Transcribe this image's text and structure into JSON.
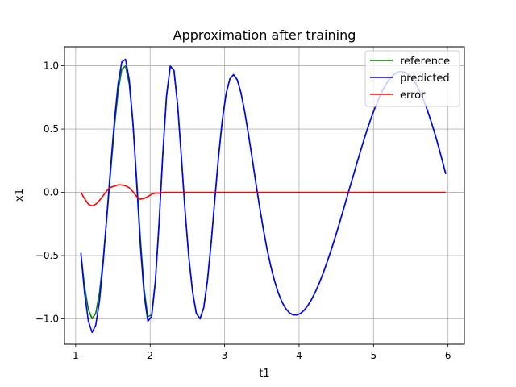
{
  "chart_data": {
    "type": "line",
    "title": "Approximation after training",
    "xlabel": "t1",
    "ylabel": "x1",
    "xlim": [
      0.85,
      6.22
    ],
    "ylim": [
      -1.2,
      1.15
    ],
    "xticks": [
      1,
      2,
      3,
      4,
      5,
      6
    ],
    "xtick_labels": [
      "1",
      "2",
      "3",
      "4",
      "5",
      "6"
    ],
    "yticks": [
      -1.0,
      -0.5,
      0.0,
      0.5,
      1.0
    ],
    "ytick_labels": [
      "−1.0",
      "−0.5",
      "0.0",
      "0.5",
      "1.0"
    ],
    "grid": true,
    "legend_position": "top-right",
    "series": [
      {
        "name": "reference",
        "color": "#008000",
        "x": [
          1.07,
          1.12,
          1.17,
          1.22,
          1.27,
          1.32,
          1.37,
          1.42,
          1.47,
          1.52,
          1.57,
          1.62,
          1.67,
          1.72,
          1.77,
          1.82,
          1.87,
          1.92,
          1.97,
          2.02,
          2.07,
          2.12,
          2.17,
          2.22,
          2.27,
          2.32,
          2.37,
          2.42,
          2.47,
          2.52,
          2.57,
          2.62,
          2.67,
          2.72,
          2.77,
          2.82,
          2.87,
          2.92,
          2.97,
          3.02,
          3.07,
          3.12,
          3.17,
          3.22,
          3.27,
          3.32,
          3.37,
          3.42,
          3.47,
          3.52,
          3.57,
          3.62,
          3.67,
          3.72,
          3.77,
          3.82,
          3.87,
          3.92,
          3.97,
          4.02,
          4.07,
          4.12,
          4.17,
          4.22,
          4.27,
          4.32,
          4.37,
          4.42,
          4.47,
          4.52,
          4.57,
          4.62,
          4.67,
          4.72,
          4.77,
          4.82,
          4.87,
          4.92,
          4.97,
          5.02,
          5.07,
          5.12,
          5.17,
          5.22,
          5.27,
          5.32,
          5.37,
          5.42,
          5.47,
          5.52,
          5.57,
          5.62,
          5.67,
          5.72,
          5.77,
          5.82,
          5.87,
          5.92,
          5.97
        ],
        "values": [
          -0.479,
          -0.746,
          -0.924,
          -0.998,
          -0.955,
          -0.794,
          -0.528,
          -0.194,
          0.169,
          0.513,
          0.797,
          0.972,
          0.998,
          0.851,
          0.535,
          0.096,
          -0.373,
          -0.764,
          -0.983,
          -0.967,
          -0.702,
          -0.24,
          0.298,
          0.757,
          0.997,
          0.962,
          0.686,
          0.276,
          -0.151,
          -0.513,
          -0.787,
          -0.955,
          -0.999,
          -0.911,
          -0.697,
          -0.392,
          -0.045,
          0.29,
          0.573,
          0.778,
          0.896,
          0.93,
          0.889,
          0.786,
          0.638,
          0.46,
          0.268,
          0.073,
          -0.115,
          -0.29,
          -0.447,
          -0.584,
          -0.699,
          -0.793,
          -0.865,
          -0.917,
          -0.951,
          -0.968,
          -0.969,
          -0.956,
          -0.93,
          -0.892,
          -0.843,
          -0.785,
          -0.718,
          -0.644,
          -0.562,
          -0.475,
          -0.383,
          -0.287,
          -0.188,
          -0.087,
          0.015,
          0.117,
          0.218,
          0.317,
          0.413,
          0.504,
          0.59,
          0.669,
          0.741,
          0.803,
          0.856,
          0.898,
          0.929,
          0.948,
          0.955,
          0.949,
          0.93,
          0.899,
          0.855,
          0.799,
          0.732,
          0.654,
          0.566,
          0.47,
          0.367,
          0.258,
          0.145
        ]
      },
      {
        "name": "predicted",
        "color": "#0000ff",
        "x": [
          1.07,
          1.12,
          1.17,
          1.22,
          1.27,
          1.32,
          1.37,
          1.42,
          1.47,
          1.52,
          1.57,
          1.62,
          1.67,
          1.72,
          1.77,
          1.82,
          1.87,
          1.92,
          1.97,
          2.02,
          2.07,
          2.12,
          2.17,
          2.22,
          2.27,
          2.32,
          2.37,
          2.42,
          2.47,
          2.52,
          2.57,
          2.62,
          2.67,
          2.72,
          2.77,
          2.82,
          2.87,
          2.92,
          2.97,
          3.02,
          3.07,
          3.12,
          3.17,
          3.22,
          3.27,
          3.32,
          3.37,
          3.42,
          3.47,
          3.52,
          3.57,
          3.62,
          3.67,
          3.72,
          3.77,
          3.82,
          3.87,
          3.92,
          3.97,
          4.02,
          4.07,
          4.12,
          4.17,
          4.22,
          4.27,
          4.32,
          4.37,
          4.42,
          4.47,
          4.52,
          4.57,
          4.62,
          4.67,
          4.72,
          4.77,
          4.82,
          4.87,
          4.92,
          4.97,
          5.02,
          5.07,
          5.12,
          5.17,
          5.22,
          5.27,
          5.32,
          5.37,
          5.42,
          5.47,
          5.52,
          5.57,
          5.62,
          5.67,
          5.72,
          5.77,
          5.82,
          5.87,
          5.92,
          5.97
        ],
        "values": [
          -0.479,
          -0.795,
          -1.017,
          -1.106,
          -1.049,
          -0.858,
          -0.554,
          -0.18,
          0.209,
          0.562,
          0.857,
          1.03,
          1.051,
          0.886,
          0.54,
          0.062,
          -0.427,
          -0.812,
          -1.017,
          -0.982,
          -0.708,
          -0.247,
          0.297,
          0.757,
          0.997,
          0.962,
          0.686,
          0.276,
          -0.151,
          -0.513,
          -0.787,
          -0.955,
          -0.999,
          -0.911,
          -0.697,
          -0.392,
          -0.045,
          0.29,
          0.573,
          0.778,
          0.896,
          0.93,
          0.889,
          0.786,
          0.638,
          0.46,
          0.268,
          0.073,
          -0.115,
          -0.29,
          -0.447,
          -0.584,
          -0.699,
          -0.793,
          -0.865,
          -0.917,
          -0.951,
          -0.968,
          -0.969,
          -0.956,
          -0.93,
          -0.892,
          -0.843,
          -0.785,
          -0.718,
          -0.644,
          -0.562,
          -0.475,
          -0.383,
          -0.287,
          -0.188,
          -0.087,
          0.015,
          0.117,
          0.218,
          0.317,
          0.413,
          0.504,
          0.59,
          0.669,
          0.741,
          0.803,
          0.856,
          0.898,
          0.929,
          0.948,
          0.955,
          0.949,
          0.93,
          0.899,
          0.855,
          0.799,
          0.732,
          0.654,
          0.566,
          0.47,
          0.367,
          0.258,
          0.145
        ]
      },
      {
        "name": "error",
        "color": "#ff0000",
        "x": [
          1.07,
          1.12,
          1.17,
          1.22,
          1.27,
          1.32,
          1.37,
          1.42,
          1.47,
          1.52,
          1.57,
          1.62,
          1.67,
          1.72,
          1.77,
          1.82,
          1.87,
          1.92,
          1.97,
          2.02,
          2.07,
          2.12,
          2.17,
          2.22,
          2.27,
          2.32,
          2.37,
          2.42,
          2.47,
          2.52,
          2.57,
          2.62,
          2.67,
          2.72,
          2.77,
          2.82,
          2.87,
          2.92,
          2.97,
          3.02,
          3.07,
          3.12,
          3.17,
          3.22,
          3.27,
          3.32,
          3.37,
          3.42,
          3.47,
          3.52,
          3.57,
          3.62,
          3.67,
          3.72,
          3.77,
          3.82,
          3.87,
          3.92,
          3.97,
          4.02,
          4.07,
          4.12,
          4.17,
          4.22,
          4.27,
          4.32,
          4.37,
          4.42,
          4.47,
          4.52,
          4.57,
          4.62,
          4.67,
          4.72,
          4.77,
          4.82,
          4.87,
          4.92,
          4.97,
          5.02,
          5.07,
          5.12,
          5.17,
          5.22,
          5.27,
          5.32,
          5.37,
          5.42,
          5.47,
          5.52,
          5.57,
          5.62,
          5.67,
          5.72,
          5.77,
          5.82,
          5.87,
          5.92,
          5.97
        ],
        "values": [
          0.0,
          -0.049,
          -0.093,
          -0.108,
          -0.094,
          -0.064,
          -0.026,
          0.014,
          0.04,
          0.049,
          0.06,
          0.058,
          0.053,
          0.035,
          0.005,
          -0.034,
          -0.054,
          -0.048,
          -0.034,
          -0.015,
          -0.006,
          -0.007,
          -0.001,
          0.0,
          0.0,
          0.0,
          0.0,
          0.0,
          0.0,
          0.0,
          0.0,
          0.0,
          0.0,
          0.0,
          0.0,
          0.0,
          0.0,
          0.0,
          0.0,
          0.0,
          0.0,
          0.0,
          0.0,
          0.0,
          0.0,
          0.0,
          0.0,
          0.0,
          0.0,
          0.0,
          0.0,
          0.0,
          0.0,
          0.0,
          0.0,
          0.0,
          0.0,
          0.0,
          0.0,
          0.0,
          0.0,
          0.0,
          0.0,
          0.0,
          0.0,
          0.0,
          0.0,
          0.0,
          0.0,
          0.0,
          0.0,
          0.0,
          0.0,
          0.0,
          0.0,
          0.0,
          0.0,
          0.0,
          0.0,
          0.0,
          0.0,
          0.0,
          0.0,
          0.0,
          0.0,
          0.0,
          0.0,
          0.0,
          0.0,
          0.0,
          0.0,
          0.0,
          0.0,
          0.0,
          0.0,
          0.0,
          0.0,
          0.0,
          0.0
        ]
      }
    ]
  }
}
